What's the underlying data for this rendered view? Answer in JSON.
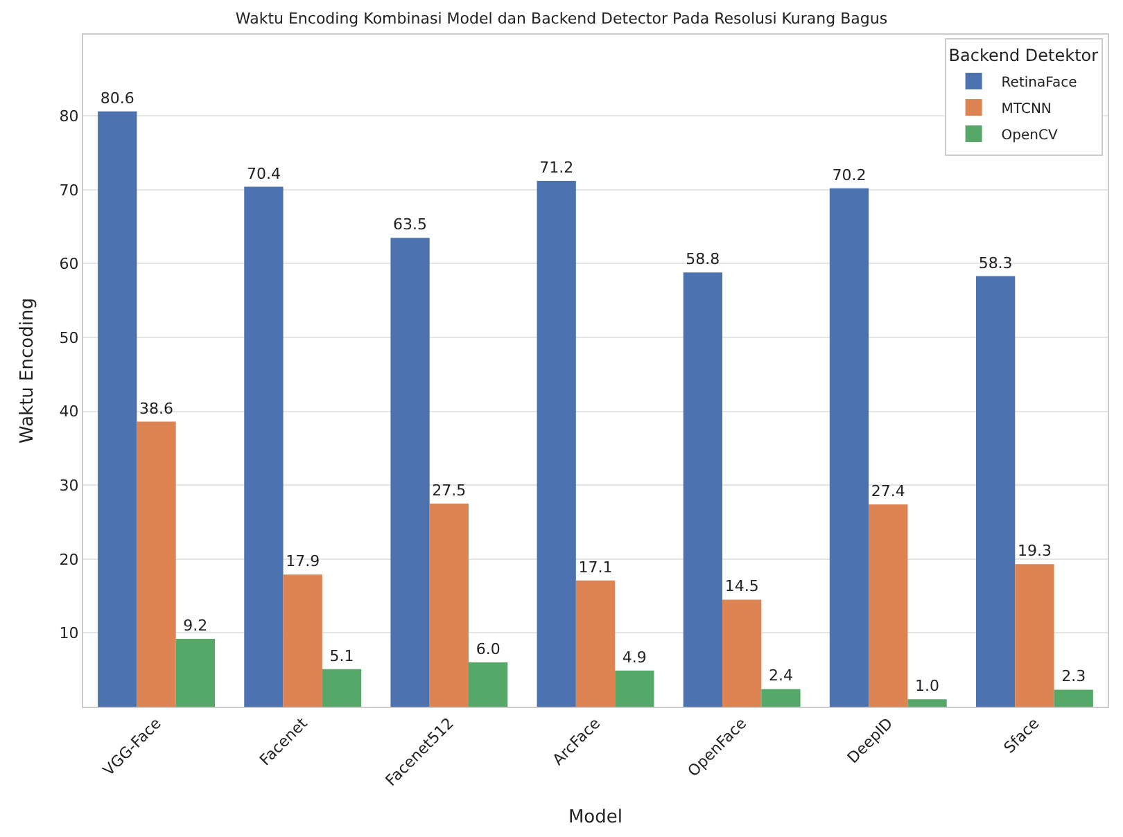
{
  "chart_data": {
    "type": "bar",
    "title": "Waktu Encoding Kombinasi Model dan Backend Detector Pada Resolusi Kurang Bagus",
    "xlabel": "Model",
    "ylabel": "Waktu Encoding",
    "legend_title": "Backend Detektor",
    "categories": [
      "VGG-Face",
      "Facenet",
      "Facenet512",
      "ArcFace",
      "OpenFace",
      "DeepID",
      "Sface"
    ],
    "series": [
      {
        "name": "RetinaFace",
        "color": "#4c72b0",
        "values": [
          80.6,
          70.4,
          63.5,
          71.2,
          58.8,
          70.2,
          58.3
        ]
      },
      {
        "name": "MTCNN",
        "color": "#dd8452",
        "values": [
          38.6,
          17.9,
          27.5,
          17.1,
          14.5,
          27.4,
          19.3
        ]
      },
      {
        "name": "OpenCV",
        "color": "#55a868",
        "values": [
          9.2,
          5.1,
          6.0,
          4.9,
          2.4,
          1.0,
          2.3
        ]
      }
    ],
    "value_labels": [
      [
        "80.6",
        "70.4",
        "63.5",
        "71.2",
        "58.8",
        "70.2",
        "58.3"
      ],
      [
        "38.6",
        "17.9",
        "27.5",
        "17.1",
        "14.5",
        "27.4",
        "19.3"
      ],
      [
        "9.2",
        "5.1",
        "6.0",
        "4.9",
        "2.4",
        "1.0",
        "2.3"
      ]
    ],
    "ylim": [
      0,
      91
    ],
    "yticks": [
      10,
      20,
      30,
      40,
      50,
      60,
      70,
      80
    ],
    "grid": "y",
    "legend": "top right"
  }
}
